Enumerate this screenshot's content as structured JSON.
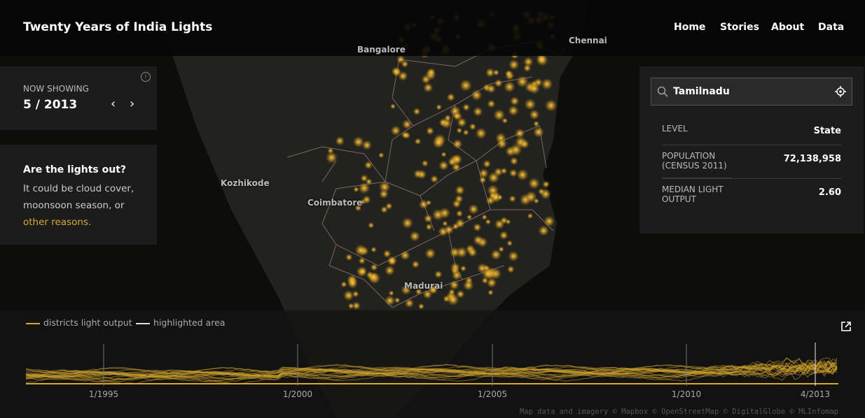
{
  "header": {
    "title": "Twenty Years of India Lights",
    "nav": [
      "Home",
      "Stories",
      "About",
      "Data"
    ]
  },
  "now_showing": {
    "label": "NOW SHOWING",
    "date": "5 / 2013"
  },
  "info": {
    "title": "Are the lights out?",
    "body": "It could be cloud cover, moonsoon season, or",
    "link": "other reasons."
  },
  "search": {
    "query": "Tamilnadu"
  },
  "details": {
    "rows": [
      [
        "LEVEL",
        "State"
      ],
      [
        "POPULATION (CENSUS 2011)",
        "72,138,958"
      ],
      [
        "MEDIAN LIGHT OUTPUT",
        "2.60"
      ]
    ]
  },
  "map": {
    "places": [
      "Bangalore",
      "Chennai",
      "Kozhikode",
      "Coimbatore",
      "Madurai"
    ],
    "attribution": "Map data and imagery © Mapbox © OpenStreetMap © DigitalGlobe © MLInfomap"
  },
  "timeline": {
    "legend": [
      "districts light output",
      "highlighted area"
    ],
    "ticks": [
      "1/1995",
      "1/2000",
      "1/2005",
      "1/2010",
      "4/2013"
    ]
  }
}
